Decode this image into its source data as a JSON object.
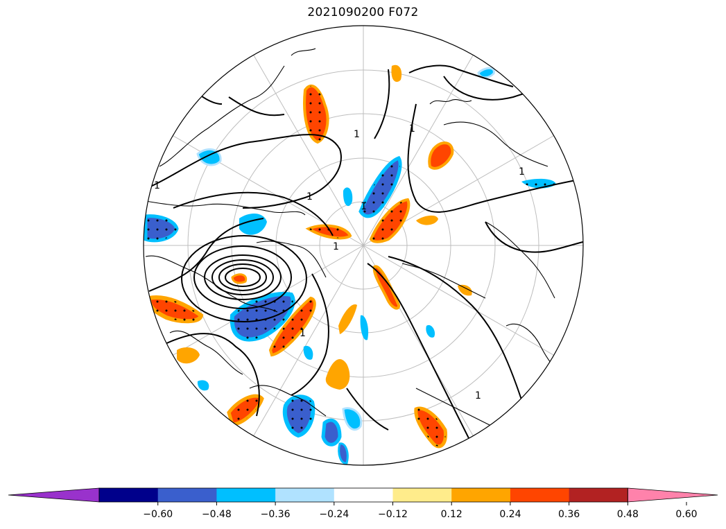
{
  "title": "2021090200 F072",
  "contour_label": "1",
  "colorbar": {
    "ticks": [
      "−0.60",
      "−0.48",
      "−0.36",
      "−0.24",
      "−0.12",
      "0.12",
      "0.24",
      "0.36",
      "0.48",
      "0.60"
    ],
    "colors": [
      "#9932cc",
      "#00008b",
      "#3a5fcd",
      "#00bfff",
      "#b0e2ff",
      "#ffffff",
      "#ffec8b",
      "#ffa500",
      "#ff4500",
      "#b22222",
      "#ff82ab"
    ],
    "extend": "both"
  },
  "map": {
    "projection": "north-polar-stereographic",
    "graticule": true
  }
}
